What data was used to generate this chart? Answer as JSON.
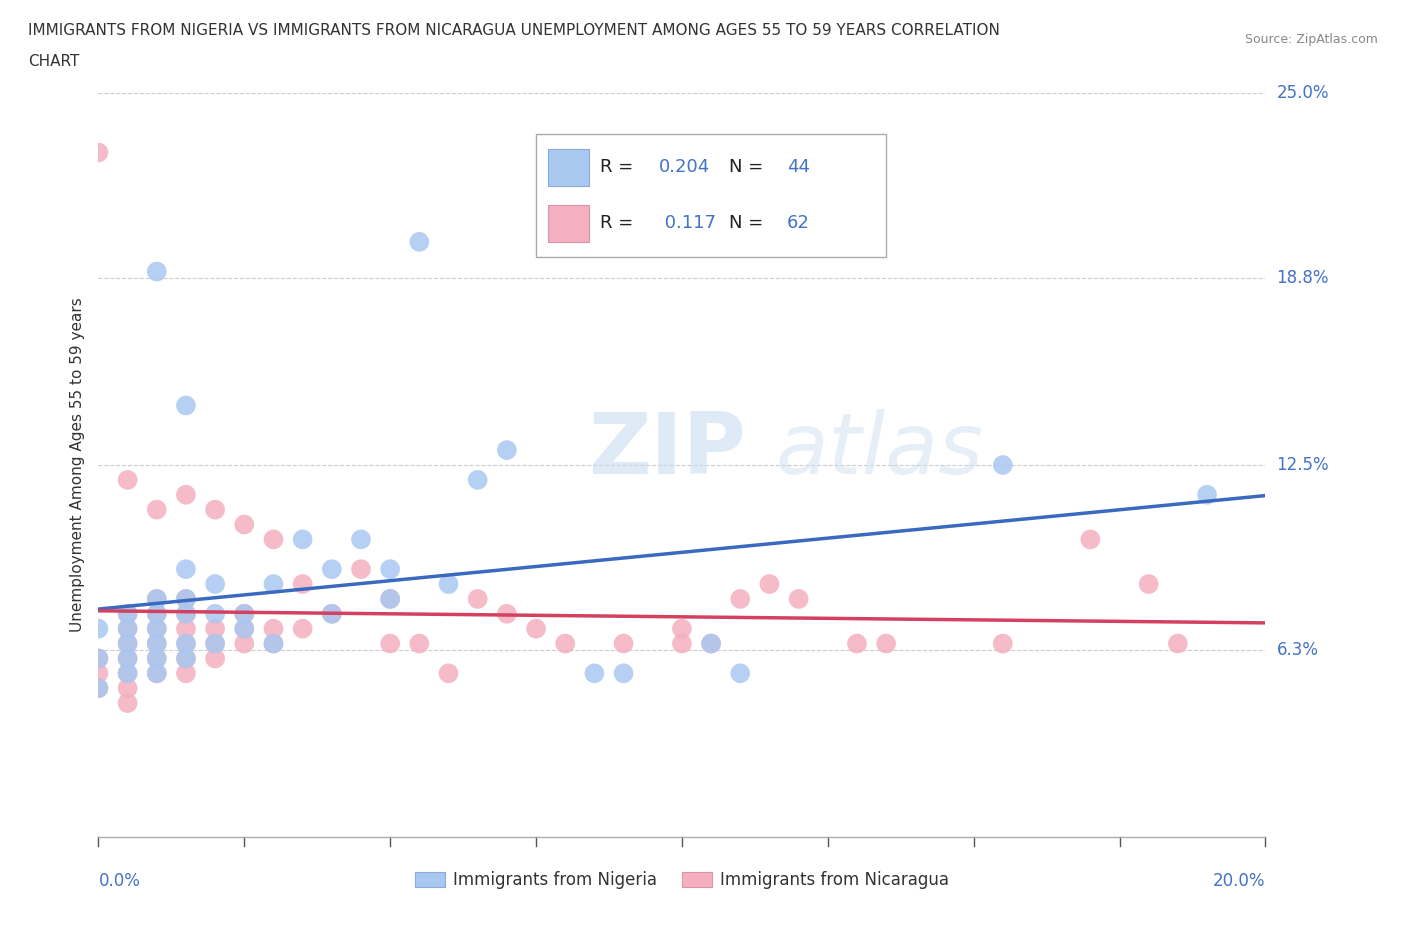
{
  "title_line1": "IMMIGRANTS FROM NIGERIA VS IMMIGRANTS FROM NICARAGUA UNEMPLOYMENT AMONG AGES 55 TO 59 YEARS CORRELATION",
  "title_line2": "CHART",
  "source": "Source: ZipAtlas.com",
  "ylabel": "Unemployment Among Ages 55 to 59 years",
  "xlim": [
    0.0,
    0.2
  ],
  "ylim": [
    0.0,
    0.25
  ],
  "yticks": [
    0.063,
    0.125,
    0.188,
    0.25
  ],
  "ytick_labels": [
    "6.3%",
    "12.5%",
    "18.8%",
    "25.0%"
  ],
  "xtick_left_label": "0.0%",
  "xtick_right_label": "20.0%",
  "watermark_zip": "ZIP",
  "watermark_atlas": "atlas",
  "nigeria_color": "#a8c8f0",
  "nicaragua_color": "#f4afc0",
  "nigeria_line_color": "#3a6abf",
  "nicaragua_line_color": "#d44060",
  "legend_R_nigeria": "0.204",
  "legend_N_nigeria": "44",
  "legend_R_nicaragua": "0.117",
  "legend_N_nicaragua": "62",
  "nigeria_x": [
    0.0,
    0.0,
    0.0,
    0.005,
    0.005,
    0.005,
    0.005,
    0.005,
    0.01,
    0.01,
    0.01,
    0.01,
    0.01,
    0.01,
    0.01,
    0.015,
    0.015,
    0.015,
    0.015,
    0.015,
    0.015,
    0.02,
    0.02,
    0.02,
    0.025,
    0.025,
    0.03,
    0.03,
    0.035,
    0.04,
    0.04,
    0.045,
    0.05,
    0.05,
    0.055,
    0.06,
    0.065,
    0.07,
    0.085,
    0.09,
    0.105,
    0.11,
    0.155,
    0.19
  ],
  "nigeria_y": [
    0.05,
    0.06,
    0.07,
    0.055,
    0.06,
    0.065,
    0.07,
    0.075,
    0.055,
    0.06,
    0.065,
    0.07,
    0.075,
    0.08,
    0.19,
    0.06,
    0.065,
    0.075,
    0.08,
    0.09,
    0.145,
    0.065,
    0.075,
    0.085,
    0.07,
    0.075,
    0.065,
    0.085,
    0.1,
    0.075,
    0.09,
    0.1,
    0.08,
    0.09,
    0.2,
    0.085,
    0.12,
    0.13,
    0.055,
    0.055,
    0.065,
    0.055,
    0.125,
    0.115
  ],
  "nicaragua_x": [
    0.0,
    0.0,
    0.0,
    0.0,
    0.005,
    0.005,
    0.005,
    0.005,
    0.005,
    0.005,
    0.005,
    0.005,
    0.01,
    0.01,
    0.01,
    0.01,
    0.01,
    0.01,
    0.01,
    0.015,
    0.015,
    0.015,
    0.015,
    0.015,
    0.015,
    0.015,
    0.02,
    0.02,
    0.02,
    0.02,
    0.025,
    0.025,
    0.025,
    0.025,
    0.03,
    0.03,
    0.03,
    0.035,
    0.035,
    0.04,
    0.045,
    0.05,
    0.05,
    0.055,
    0.06,
    0.065,
    0.07,
    0.075,
    0.08,
    0.09,
    0.1,
    0.1,
    0.105,
    0.11,
    0.115,
    0.12,
    0.13,
    0.135,
    0.155,
    0.17,
    0.18,
    0.185
  ],
  "nicaragua_y": [
    0.05,
    0.055,
    0.06,
    0.23,
    0.045,
    0.05,
    0.055,
    0.06,
    0.065,
    0.07,
    0.075,
    0.12,
    0.055,
    0.06,
    0.065,
    0.07,
    0.075,
    0.08,
    0.11,
    0.055,
    0.06,
    0.065,
    0.07,
    0.075,
    0.08,
    0.115,
    0.06,
    0.065,
    0.07,
    0.11,
    0.065,
    0.07,
    0.075,
    0.105,
    0.065,
    0.07,
    0.1,
    0.07,
    0.085,
    0.075,
    0.09,
    0.065,
    0.08,
    0.065,
    0.055,
    0.08,
    0.075,
    0.07,
    0.065,
    0.065,
    0.065,
    0.07,
    0.065,
    0.08,
    0.085,
    0.08,
    0.065,
    0.065,
    0.065,
    0.1,
    0.085,
    0.065
  ]
}
